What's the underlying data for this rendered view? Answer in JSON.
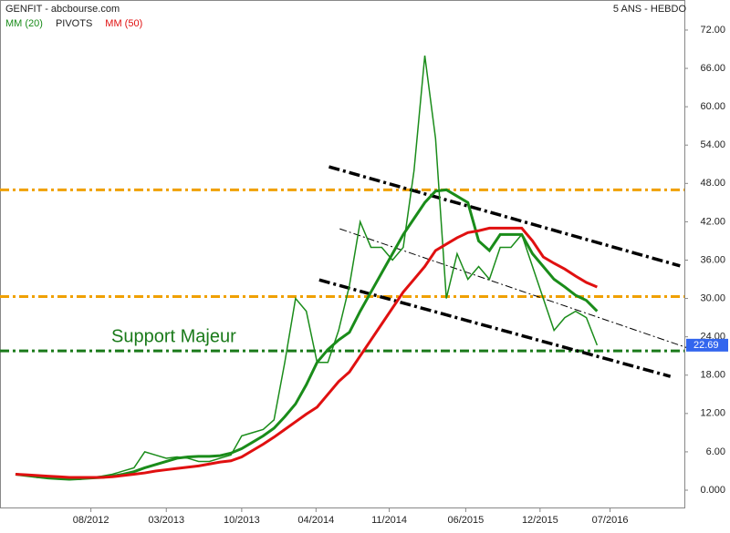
{
  "chart_data": {
    "type": "line",
    "title": "GENFIT - abcbourse.com",
    "subtitle": "5 ANS - HEBDO",
    "x": [
      0,
      1,
      2,
      3,
      4,
      5,
      6,
      7,
      8,
      9,
      10,
      11,
      12,
      13,
      14,
      15,
      16,
      17,
      18,
      19,
      20,
      21,
      22,
      23,
      24,
      25,
      26,
      27,
      28,
      29,
      30,
      31,
      32,
      33,
      34,
      35,
      36,
      37,
      38,
      39,
      40,
      41,
      42,
      43,
      44,
      45,
      46,
      47,
      48,
      49,
      50,
      51,
      52,
      53,
      54
    ],
    "price": {
      "color": "#1a8c1a",
      "values": [
        2.5,
        2.3,
        2.0,
        1.8,
        1.7,
        1.6,
        1.7,
        2.0,
        2.2,
        2.5,
        3.0,
        3.5,
        6.0,
        5.5,
        5.0,
        5.2,
        5.0,
        4.5,
        4.5,
        5.0,
        5.5,
        8.5,
        9.0,
        9.5,
        11.0,
        20,
        30,
        28,
        20,
        20,
        25,
        32,
        42,
        38,
        38,
        36,
        38,
        50,
        68,
        55,
        30,
        37,
        33,
        35,
        33,
        38,
        38,
        40,
        35,
        30,
        25,
        27,
        28,
        27,
        22.69
      ]
    },
    "series": [
      {
        "name": "MM (20)",
        "color": "#1a8c1a",
        "values": [
          2.5,
          2.3,
          2.1,
          2.0,
          1.9,
          1.8,
          1.8,
          1.9,
          2.0,
          2.2,
          2.5,
          2.9,
          3.5,
          4.0,
          4.5,
          5.0,
          5.2,
          5.3,
          5.3,
          5.4,
          5.8,
          6.5,
          7.5,
          8.5,
          9.7,
          11.5,
          13.5,
          16.5,
          20,
          22,
          23.5,
          24.7,
          28,
          31,
          34,
          37,
          40,
          42.5,
          45,
          46.8,
          47,
          46,
          45,
          39,
          37.5,
          40,
          40,
          40,
          37,
          35,
          33,
          31.8,
          30.5,
          29.7,
          28
        ]
      },
      {
        "name": "MM (50)",
        "color": "#e01010",
        "values": [
          2.5,
          2.4,
          2.3,
          2.2,
          2.1,
          2.0,
          2.0,
          2.0,
          2.0,
          2.1,
          2.3,
          2.5,
          2.7,
          3.0,
          3.2,
          3.4,
          3.6,
          3.8,
          4.1,
          4.4,
          4.6,
          5.2,
          6.2,
          7.2,
          8.3,
          9.5,
          10.7,
          11.9,
          13,
          15,
          17,
          18.5,
          21,
          23.5,
          26,
          28.5,
          31,
          33,
          35,
          37.5,
          38.5,
          39.5,
          40.3,
          40.6,
          41,
          41,
          41,
          41,
          39,
          36.5,
          35.5,
          34.6,
          33.5,
          32.5,
          31.8
        ]
      }
    ],
    "pivots": {
      "name": "PIVOTS",
      "color": "#f0a000",
      "levels": [
        47,
        30.3
      ]
    },
    "support": {
      "label": "Support Majeur",
      "color": "#1a7a1a",
      "value": 21.8
    },
    "last_price": {
      "value": 22.69,
      "color": "#3366ee"
    },
    "trendlines": [
      {
        "x": [
          29.1,
          61.7
        ],
        "y": [
          50.6,
          35.1
        ]
      },
      {
        "x": [
          30.1,
          62.5
        ],
        "y": [
          40.9,
          22.2
        ]
      },
      {
        "x": [
          28.2,
          60.8
        ],
        "y": [
          32.9,
          17.8
        ]
      }
    ],
    "xlim": [
      -1.44,
      62.1
    ],
    "ylim": [
      -2.85,
      76.7
    ],
    "xticks": [
      {
        "value": 7,
        "label": "08/2012"
      },
      {
        "value": 14,
        "label": "03/2013"
      },
      {
        "value": 21,
        "label": "10/2013"
      },
      {
        "value": 27.9,
        "label": "04/2014"
      },
      {
        "value": 34.7,
        "label": "11/2014"
      },
      {
        "value": 41.8,
        "label": "06/2015"
      },
      {
        "value": 48.7,
        "label": "12/2015"
      },
      {
        "value": 55.2,
        "label": "07/2016"
      }
    ],
    "yticks": [
      {
        "value": 0,
        "label": "0.000"
      },
      {
        "value": 6,
        "label": "6.00"
      },
      {
        "value": 12,
        "label": "12.00"
      },
      {
        "value": 18,
        "label": "18.00"
      },
      {
        "value": 24,
        "label": "24.00"
      },
      {
        "value": 30,
        "label": "30.00"
      },
      {
        "value": 36,
        "label": "36.00"
      },
      {
        "value": 42,
        "label": "42.00"
      },
      {
        "value": 48,
        "label": "48.00"
      },
      {
        "value": 54,
        "label": "54.00"
      },
      {
        "value": 60,
        "label": "60.00"
      },
      {
        "value": 66,
        "label": "66.00"
      },
      {
        "value": 72,
        "label": "72.00"
      }
    ]
  }
}
